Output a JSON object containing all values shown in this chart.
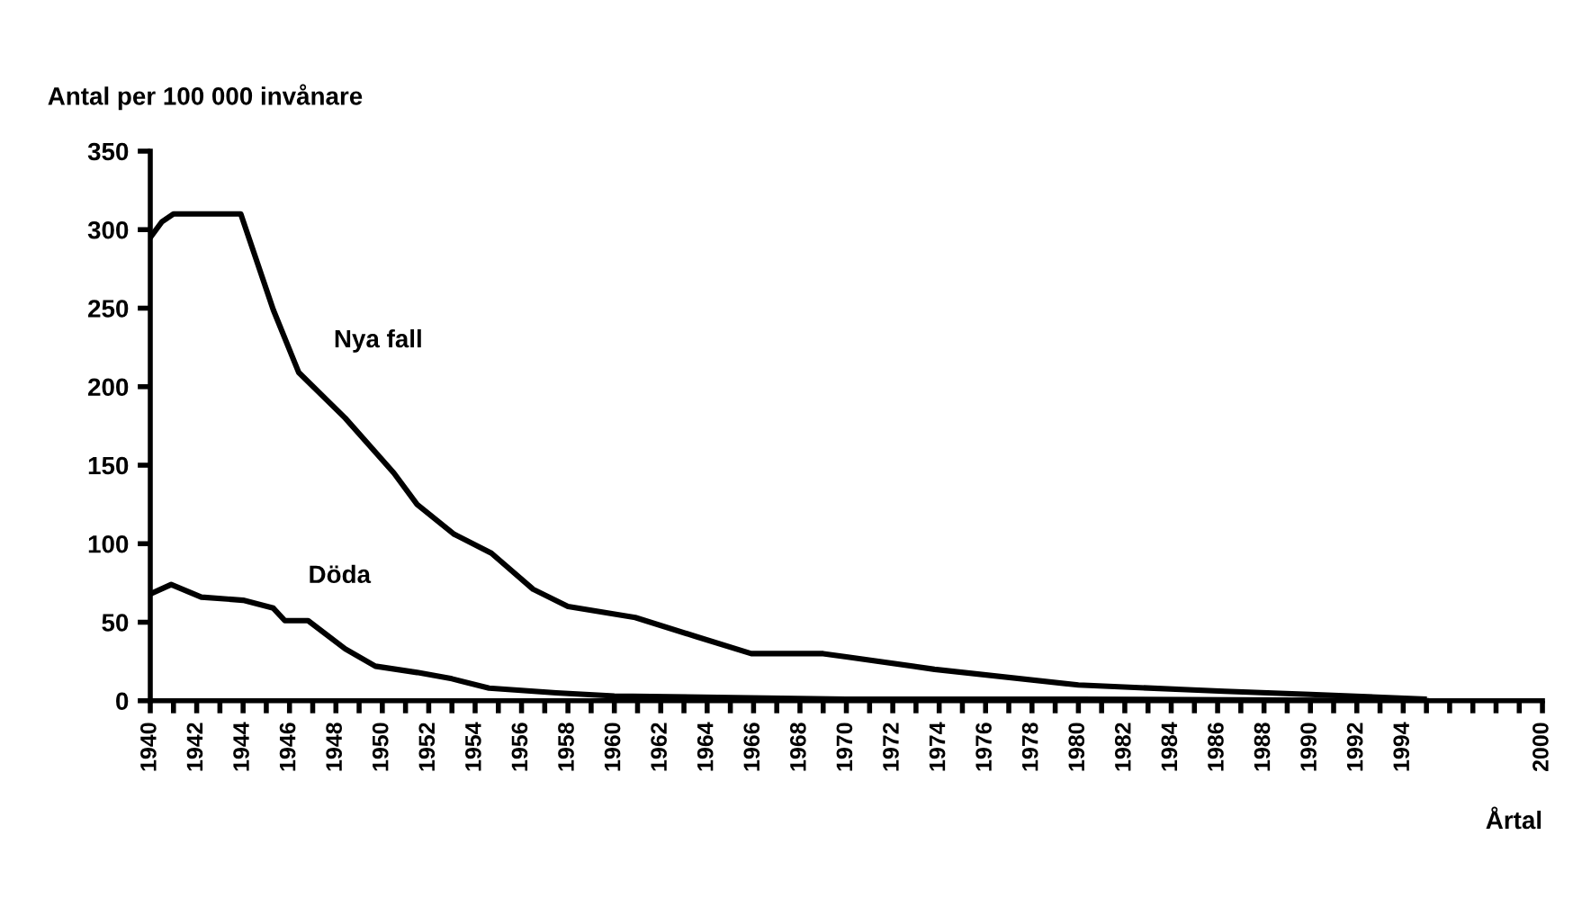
{
  "chart_data": {
    "type": "line",
    "ylabel": "Antal per 100 000 invånare",
    "xlabel": "Årtal",
    "series": [
      {
        "name": "Nya fall",
        "color": "#000000",
        "x": [
          1940,
          1940.5,
          1941,
          1942,
          1943.9,
          1945.3,
          1946.4,
          1948.4,
          1950.5,
          1951.5,
          1953.1,
          1954.7,
          1956.5,
          1958,
          1960.9,
          1963.5,
          1965.9,
          1969,
          1970,
          1973.8,
          1980,
          1986.3,
          1990,
          1994.9
        ],
        "values": [
          295,
          305,
          310,
          310,
          310,
          249,
          209,
          180,
          145,
          125,
          106,
          94,
          71,
          60,
          53,
          41,
          30,
          30,
          28,
          20,
          10,
          6,
          4,
          1
        ]
      },
      {
        "name": "Döda",
        "color": "#000000",
        "x": [
          1940,
          1940.9,
          1942.2,
          1944,
          1945.3,
          1945.8,
          1946.8,
          1948.4,
          1949.7,
          1951.5,
          1953,
          1954.6,
          1957.5,
          1960,
          1970,
          1980,
          1995
        ],
        "values": [
          68,
          74,
          66,
          64,
          59,
          51,
          51,
          33,
          22,
          18,
          14,
          8,
          5,
          3,
          1,
          1,
          0
        ]
      }
    ],
    "xlim": [
      1940,
      2000
    ],
    "xticks": [
      1940,
      {
        "value": 1941,
        "label": null
      },
      1942,
      {
        "value": 1943,
        "label": null
      },
      1944,
      {
        "value": 1945,
        "label": null
      },
      1946,
      {
        "value": 1947,
        "label": null
      },
      1948,
      {
        "value": 1949,
        "label": null
      },
      1950,
      {
        "value": 1951,
        "label": null
      },
      1952,
      {
        "value": 1953,
        "label": null
      },
      1954,
      {
        "value": 1955,
        "label": null
      },
      1956,
      {
        "value": 1957,
        "label": null
      },
      1958,
      {
        "value": 1959,
        "label": null
      },
      1960,
      {
        "value": 1961,
        "label": null
      },
      1962,
      {
        "value": 1963,
        "label": null
      },
      1964,
      {
        "value": 1965,
        "label": null
      },
      1966,
      {
        "value": 1967,
        "label": null
      },
      1968,
      {
        "value": 1969,
        "label": null
      },
      1970,
      {
        "value": 1971,
        "label": null
      },
      1972,
      {
        "value": 1973,
        "label": null
      },
      1974,
      {
        "value": 1975,
        "label": null
      },
      1976,
      {
        "value": 1977,
        "label": null
      },
      1978,
      {
        "value": 1979,
        "label": null
      },
      1980,
      {
        "value": 1981,
        "label": null
      },
      1982,
      {
        "value": 1983,
        "label": null
      },
      1984,
      {
        "value": 1985,
        "label": null
      },
      1986,
      {
        "value": 1987,
        "label": null
      },
      1988,
      {
        "value": 1989,
        "label": null
      },
      1990,
      {
        "value": 1991,
        "label": null
      },
      1992,
      {
        "value": 1993,
        "label": null
      },
      1994,
      {
        "value": 1995,
        "label": null
      },
      {
        "value": 1996,
        "label": null
      },
      {
        "value": 1997,
        "label": null
      },
      {
        "value": 1998,
        "label": null
      },
      {
        "value": 1999,
        "label": null
      },
      2000
    ],
    "ylim": [
      0,
      350
    ],
    "yticks": [
      0,
      50,
      100,
      150,
      200,
      250,
      300,
      350
    ],
    "grid": false,
    "legend": false,
    "marker": "none",
    "line_style": "solid"
  }
}
